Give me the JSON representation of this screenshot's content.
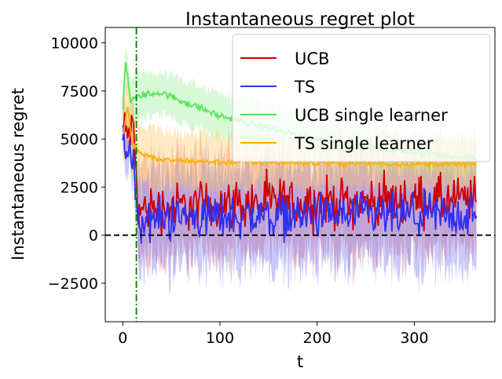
{
  "chart_data": {
    "type": "line",
    "title": "Instantaneous regret plot",
    "xlabel": "t",
    "ylabel": "Instantaneous regret",
    "xlim": [
      -18,
      383
    ],
    "ylim": [
      -4500,
      10800
    ],
    "xticks": [
      0,
      100,
      200,
      300
    ],
    "xtick_labels": [
      "0",
      "100",
      "200",
      "300"
    ],
    "yticks": [
      -2500,
      0,
      2500,
      5000,
      7500,
      10000
    ],
    "ytick_labels": [
      "−2500",
      "0",
      "2500",
      "5000",
      "7500",
      "10000"
    ],
    "grid": false,
    "legend_position": "top-right",
    "t_max": 365,
    "reference_lines": [
      {
        "kind": "horizontal",
        "value": 0,
        "style": "dashed",
        "color": "#000000"
      },
      {
        "kind": "vertical",
        "value": 14,
        "style": "dashdot",
        "color": "#008000"
      }
    ],
    "series": [
      {
        "name": "UCB",
        "color": "#cc0000",
        "band_color": "#e06060",
        "mean_keypoints": [
          [
            0,
            5600
          ],
          [
            4,
            5200
          ],
          [
            8,
            5500
          ],
          [
            12,
            5000
          ],
          [
            14,
            3000
          ],
          [
            16,
            1200
          ],
          [
            30,
            1400
          ],
          [
            60,
            1500
          ],
          [
            100,
            1600
          ],
          [
            150,
            1700
          ],
          [
            200,
            1700
          ],
          [
            250,
            1700
          ],
          [
            300,
            1800
          ],
          [
            364,
            1800
          ]
        ],
        "noise_amplitude": 1100,
        "band_halfwidth_keypoints": [
          [
            0,
            900
          ],
          [
            14,
            1400
          ],
          [
            16,
            2400
          ],
          [
            364,
            2600
          ]
        ]
      },
      {
        "name": "TS",
        "color": "#3030f0",
        "band_color": "#7070f8",
        "mean_keypoints": [
          [
            0,
            5200
          ],
          [
            4,
            4700
          ],
          [
            8,
            4000
          ],
          [
            12,
            3500
          ],
          [
            14,
            2000
          ],
          [
            16,
            700
          ],
          [
            40,
            900
          ],
          [
            100,
            1000
          ],
          [
            200,
            1000
          ],
          [
            300,
            1000
          ],
          [
            364,
            1000
          ]
        ],
        "noise_amplitude": 1000,
        "band_halfwidth_keypoints": [
          [
            0,
            900
          ],
          [
            14,
            1400
          ],
          [
            16,
            2400
          ],
          [
            364,
            2600
          ]
        ]
      },
      {
        "name": "UCB single learner",
        "color": "#55e655",
        "band_color": "#99f099",
        "mean_keypoints": [
          [
            0,
            6500
          ],
          [
            3,
            9000
          ],
          [
            8,
            7000
          ],
          [
            20,
            7300
          ],
          [
            40,
            7400
          ],
          [
            70,
            6800
          ],
          [
            100,
            6200
          ],
          [
            140,
            5700
          ],
          [
            180,
            5200
          ],
          [
            220,
            4800
          ],
          [
            260,
            4500
          ],
          [
            300,
            4300
          ],
          [
            340,
            4100
          ],
          [
            364,
            4000
          ]
        ],
        "noise_amplitude": 150,
        "band_halfwidth_keypoints": [
          [
            0,
            1200
          ],
          [
            40,
            1100
          ],
          [
            150,
            1200
          ],
          [
            364,
            1000
          ]
        ]
      },
      {
        "name": "TS single learner",
        "color": "#ffb000",
        "band_color": "#ffc860",
        "mean_keypoints": [
          [
            0,
            5200
          ],
          [
            5,
            6700
          ],
          [
            10,
            4700
          ],
          [
            20,
            4200
          ],
          [
            40,
            3900
          ],
          [
            100,
            3800
          ],
          [
            200,
            3750
          ],
          [
            300,
            3700
          ],
          [
            364,
            3700
          ]
        ],
        "noise_amplitude": 130,
        "band_halfwidth_keypoints": [
          [
            0,
            1600
          ],
          [
            40,
            1500
          ],
          [
            150,
            1300
          ],
          [
            364,
            1200
          ]
        ]
      }
    ]
  }
}
